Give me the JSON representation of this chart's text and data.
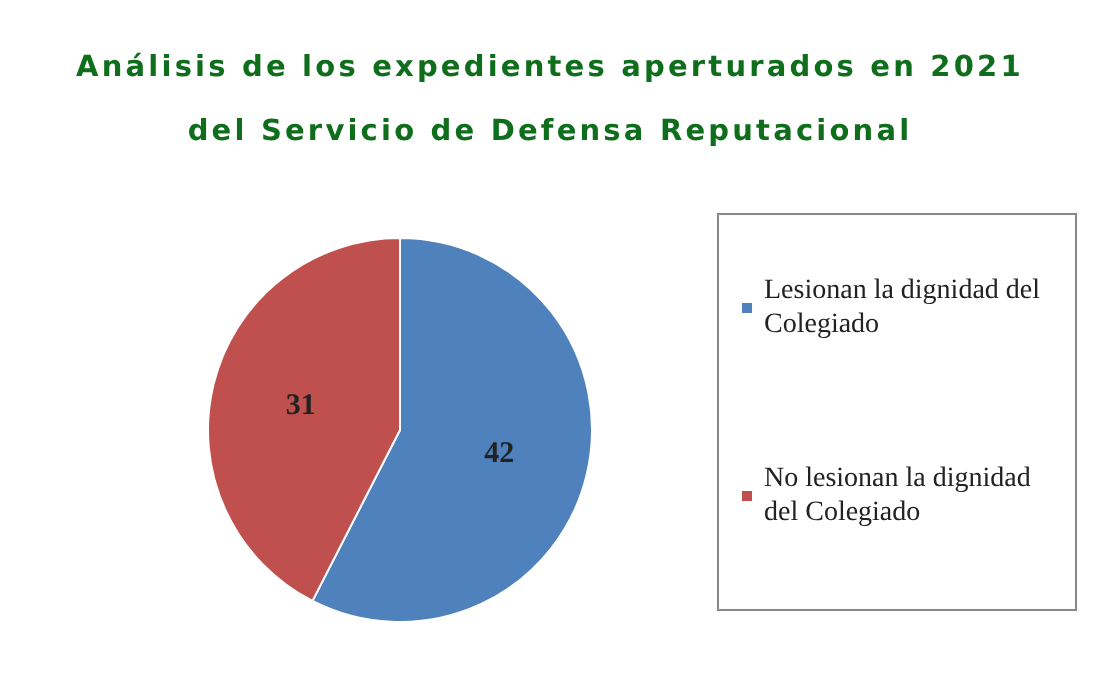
{
  "chart_data": {
    "type": "pie",
    "title": "Análisis de los expedientes aperturados en 2021 del Servicio de Defensa Reputacional",
    "categories": [
      "Lesionan la dignidad del Colegiado",
      "No lesionan la dignidad del Colegiado"
    ],
    "values": [
      42,
      31
    ],
    "colors": [
      "#4f81bd",
      "#c0504d"
    ],
    "data_labels": true,
    "legend": "right"
  }
}
